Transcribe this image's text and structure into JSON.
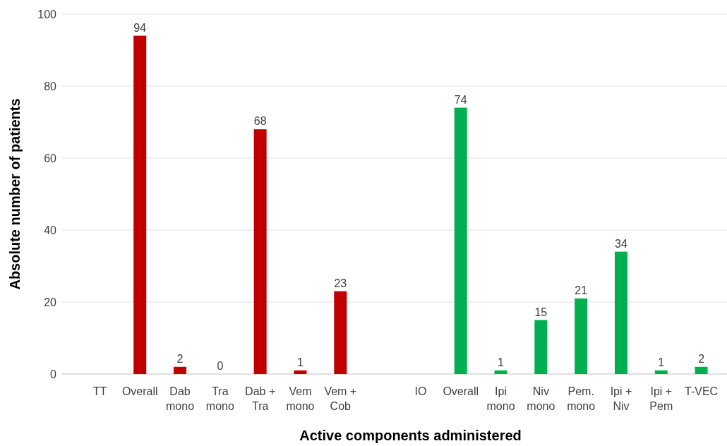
{
  "chart_data": {
    "type": "bar",
    "xlabel": "Active components administered",
    "ylabel": "Absolute number of patients",
    "categories": [
      "TT",
      "Overall",
      "Dab mono",
      "Tra mono",
      "Dab + Tra",
      "Vem mono",
      "Vem + Cob",
      null,
      "IO",
      "Overall",
      "Ipi mono",
      "Niv mono",
      "Pem. mono",
      "Ipi + Niv",
      "Ipi + Pem",
      "T-VEC"
    ],
    "series": [
      {
        "color": "#c00000",
        "values": [
          null,
          94,
          2,
          0,
          68,
          1,
          23,
          null,
          null,
          null,
          null,
          null,
          null,
          null,
          null,
          null
        ]
      },
      {
        "color": "#00b050",
        "values": [
          null,
          null,
          null,
          null,
          null,
          null,
          null,
          null,
          null,
          74,
          1,
          15,
          21,
          34,
          1,
          2
        ]
      }
    ],
    "ylim": [
      0,
      100
    ],
    "yticks": [
      0,
      20,
      40,
      60,
      80,
      100
    ],
    "grid": "y",
    "data_labels": true
  }
}
